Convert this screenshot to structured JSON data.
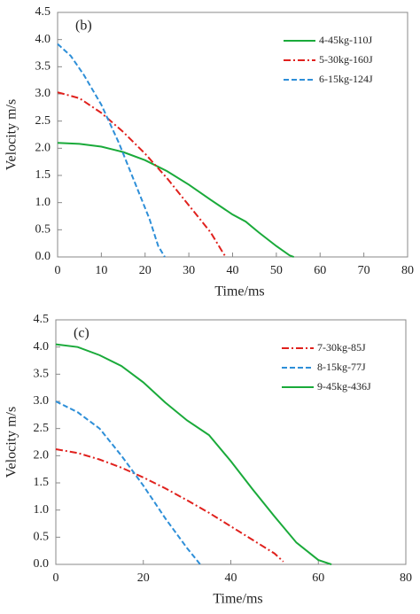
{
  "chart_data": [
    {
      "type": "line",
      "annotation": "(b)",
      "xlabel": "Time/ms",
      "ylabel": "Velocity m/s",
      "xlim": [
        0,
        80
      ],
      "xticks": [
        0,
        10,
        20,
        30,
        40,
        50,
        60,
        70,
        80
      ],
      "ylim": [
        0,
        4.5
      ],
      "yticks": [
        {
          "value": 0,
          "label": "0.0"
        },
        0.5,
        {
          "value": 1,
          "label": "1.0"
        },
        1.5,
        {
          "value": 2,
          "label": "2.0"
        },
        2.5,
        {
          "value": 3,
          "label": "3.0"
        },
        3.5,
        {
          "value": 4,
          "label": "4.0"
        },
        4.5
      ],
      "legend": "upper right",
      "series": [
        {
          "name": "4-45kg-110J",
          "color": "#1aaa3a",
          "dash": "solid",
          "x": [
            0,
            5,
            10,
            15,
            20,
            25,
            30,
            35,
            40,
            43,
            46,
            50,
            53,
            54
          ],
          "values": [
            2.1,
            2.08,
            2.03,
            1.93,
            1.78,
            1.58,
            1.33,
            1.05,
            0.78,
            0.65,
            0.45,
            0.2,
            0.03,
            0
          ]
        },
        {
          "name": "5-30kg-160J",
          "color": "#e0211d",
          "dash": "dashdot",
          "x": [
            0,
            5,
            10,
            15,
            20,
            25,
            30,
            35,
            38,
            38.5
          ],
          "values": [
            3.03,
            2.92,
            2.65,
            2.3,
            1.9,
            1.45,
            0.95,
            0.45,
            0.05,
            0
          ]
        },
        {
          "name": "6-15kg-124J",
          "color": "#2e8fd8",
          "dash": "dashed",
          "x": [
            0,
            3,
            6,
            10,
            14,
            18,
            21,
            23,
            24.5
          ],
          "values": [
            3.92,
            3.7,
            3.35,
            2.8,
            2.1,
            1.3,
            0.7,
            0.2,
            0
          ]
        }
      ]
    },
    {
      "type": "line",
      "annotation": "(c)",
      "xlabel": "Time/ms",
      "ylabel": "Velocity m/s",
      "xlim": [
        0,
        80
      ],
      "xticks": [
        0,
        20,
        40,
        60,
        80
      ],
      "ylim": [
        0,
        4.5
      ],
      "yticks": [
        {
          "value": 0,
          "label": "0.0"
        },
        0.5,
        {
          "value": 1,
          "label": "1.0"
        },
        1.5,
        {
          "value": 2,
          "label": "2.0"
        },
        2.5,
        {
          "value": 3,
          "label": "3.0"
        },
        3.5,
        {
          "value": 4,
          "label": "4.0"
        },
        4.5
      ],
      "legend": "upper right",
      "series": [
        {
          "name": "7-30kg-85J",
          "color": "#e0211d",
          "dash": "dashdot",
          "x": [
            0,
            5,
            10,
            15,
            20,
            25,
            30,
            35,
            40,
            45,
            50,
            52
          ],
          "values": [
            2.12,
            2.05,
            1.93,
            1.78,
            1.6,
            1.4,
            1.18,
            0.95,
            0.7,
            0.45,
            0.2,
            0.05
          ]
        },
        {
          "name": "8-15kg-77J",
          "color": "#2e8fd8",
          "dash": "dashed",
          "x": [
            0,
            5,
            10,
            15,
            20,
            25,
            30,
            33
          ],
          "values": [
            3.0,
            2.8,
            2.5,
            2.0,
            1.45,
            0.85,
            0.3,
            0
          ]
        },
        {
          "name": "9-45kg-436J",
          "color": "#1aaa3a",
          "dash": "solid",
          "x": [
            0,
            5,
            10,
            15,
            20,
            25,
            30,
            35,
            40,
            45,
            50,
            55,
            60,
            63
          ],
          "values": [
            4.05,
            4.0,
            3.85,
            3.65,
            3.35,
            2.98,
            2.65,
            2.38,
            1.9,
            1.38,
            0.88,
            0.4,
            0.08,
            0
          ]
        }
      ]
    }
  ]
}
